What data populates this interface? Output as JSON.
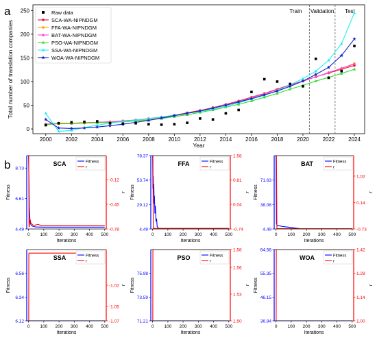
{
  "panel_labels": {
    "a": "a",
    "b": "b"
  },
  "chart_data": [
    {
      "type": "line",
      "ylabel": "Total number of translation companies",
      "xlabel": "Year",
      "xlim": [
        1999,
        2024.8
      ],
      "ylim": [
        -10,
        262
      ],
      "xticks": [
        2000,
        2002,
        2004,
        2006,
        2008,
        2010,
        2012,
        2014,
        2016,
        2018,
        2020,
        2022,
        2024
      ],
      "yticks": [
        0,
        50,
        100,
        150,
        200,
        250
      ],
      "grid": false,
      "legend": "top-left",
      "regions": [
        {
          "label": "Train",
          "from": 1999,
          "to": 2020.5
        },
        {
          "label": "Validation",
          "from": 2020.5,
          "to": 2022.5
        },
        {
          "label": "Test",
          "from": 2022.5,
          "to": 2024.8
        }
      ],
      "raw_data": {
        "name": "Raw data",
        "x": [
          2000,
          2001,
          2002,
          2003,
          2004,
          2005,
          2006,
          2007,
          2008,
          2009,
          2010,
          2011,
          2012,
          2013,
          2014,
          2015,
          2016,
          2017,
          2018,
          2019,
          2020,
          2021,
          2022,
          2023,
          2024
        ],
        "y": [
          8,
          12,
          14,
          15,
          16,
          12,
          11,
          12,
          10,
          9,
          10,
          13,
          22,
          20,
          33,
          40,
          78,
          105,
          100,
          95,
          90,
          148,
          108,
          122,
          175
        ]
      },
      "series": [
        {
          "name": "SCA-WA-NIPNDGM",
          "color": "#e8112d",
          "marker": "circle",
          "values": [
            10,
            12,
            12,
            13,
            14,
            15,
            17,
            19,
            22,
            25,
            29,
            34,
            39,
            45,
            52,
            59,
            67,
            75,
            84,
            93,
            101,
            110,
            118,
            126,
            134
          ]
        },
        {
          "name": "FFA-WA-NIPNDGM",
          "color": "#ffa500",
          "marker": "circle",
          "values": [
            9,
            11,
            11,
            12,
            13,
            14,
            16,
            18,
            21,
            24,
            28,
            33,
            38,
            44,
            51,
            58,
            66,
            74,
            83,
            92,
            101,
            110,
            119,
            128,
            138
          ]
        },
        {
          "name": "BAT-WA-NIPNDGM",
          "color": "#ff3ee0",
          "marker": "triangle",
          "values": [
            10,
            12,
            12,
            13,
            14,
            15,
            17,
            19,
            22,
            25,
            29,
            33,
            38,
            44,
            51,
            58,
            66,
            74,
            83,
            92,
            101,
            110,
            119,
            128,
            137
          ]
        },
        {
          "name": "PSO-WA-NIPNDGM",
          "color": "#33dd33",
          "marker": "triangle",
          "values": [
            9,
            12,
            12,
            13,
            13,
            14,
            15,
            17,
            19,
            22,
            26,
            30,
            35,
            40,
            46,
            52,
            59,
            67,
            75,
            84,
            92,
            101,
            109,
            117,
            126
          ]
        },
        {
          "name": "SSA-WA-NIPNDGM",
          "color": "#22eeee",
          "marker": "triangle",
          "values": [
            33,
            -5,
            -3,
            3,
            8,
            12,
            16,
            19,
            22,
            25,
            29,
            33,
            37,
            42,
            48,
            55,
            63,
            71,
            81,
            93,
            106,
            122,
            145,
            180,
            245
          ]
        },
        {
          "name": "WOA-WA-NIPNDGM",
          "color": "#1122cc",
          "marker": "star",
          "values": [
            20,
            2,
            1,
            2,
            4,
            7,
            10,
            14,
            18,
            23,
            28,
            33,
            38,
            44,
            50,
            57,
            64,
            72,
            80,
            90,
            101,
            115,
            130,
            155,
            190
          ]
        }
      ]
    },
    {
      "type": "line",
      "title": "SCA",
      "xlabel": "Iterations",
      "ylabel": "Fitness",
      "y2label": "r",
      "xlim": [
        -12,
        510
      ],
      "xticks": [
        0,
        100,
        200,
        300,
        400,
        500
      ],
      "ylim": [
        4.49,
        9.6
      ],
      "yticks": [
        4.49,
        6.61,
        8.73
      ],
      "y2lim": [
        -0.78,
        0.2
      ],
      "y2ticks": [
        -0.78,
        -0.45,
        -0.12
      ],
      "legend": "top-right",
      "series": [
        {
          "name": "Fitness",
          "axis": "left",
          "color": "#0000ff",
          "x": [
            0,
            5,
            10,
            15,
            20,
            30,
            50,
            100,
            500
          ],
          "values": [
            9.6,
            6.0,
            4.95,
            4.8,
            4.72,
            4.66,
            4.63,
            4.62,
            4.62
          ]
        },
        {
          "name": "r",
          "axis": "right",
          "color": "#ff0000",
          "x": [
            0,
            1,
            3,
            5,
            8,
            12,
            16,
            20,
            25,
            30,
            40,
            60,
            80,
            100,
            500
          ],
          "values": [
            0.2,
            0.2,
            -0.75,
            -0.75,
            -0.66,
            -0.66,
            -0.71,
            -0.71,
            -0.72,
            -0.73,
            -0.73,
            -0.72,
            -0.73,
            -0.73,
            -0.73
          ]
        }
      ]
    },
    {
      "type": "line",
      "title": "FFA",
      "xlabel": "Iterations",
      "ylabel": "Fitness",
      "y2label": "r",
      "xlim": [
        -12,
        510
      ],
      "xticks": [
        0,
        100,
        200,
        300,
        400,
        500
      ],
      "ylim": [
        4.49,
        78.37
      ],
      "yticks": [
        4.49,
        29.12,
        53.74,
        78.37
      ],
      "y2lim": [
        -0.74,
        1.58
      ],
      "y2ticks": [
        -0.74,
        0.04,
        0.81,
        1.58
      ],
      "legend": "top-right",
      "series": [
        {
          "name": "Fitness",
          "axis": "left",
          "color": "#0000ff",
          "x": [
            0,
            2,
            4,
            6,
            8,
            10,
            12,
            15,
            18,
            22,
            26,
            30,
            40,
            60,
            500
          ],
          "values": [
            78.37,
            45,
            58,
            40,
            50,
            30,
            38,
            20,
            28,
            12,
            15,
            7,
            5,
            4.6,
            4.6
          ]
        },
        {
          "name": "r",
          "axis": "right",
          "color": "#ff0000",
          "x": [
            0,
            2,
            4,
            6,
            500
          ],
          "values": [
            1.58,
            1.58,
            -0.72,
            -0.72,
            -0.72
          ]
        }
      ]
    },
    {
      "type": "line",
      "title": "BAT",
      "xlabel": "Iterations",
      "ylabel": "Fitness",
      "y2label": "r",
      "xlim": [
        -12,
        510
      ],
      "xticks": [
        0,
        100,
        200,
        300,
        400,
        500
      ],
      "ylim": [
        4.49,
        105
      ],
      "yticks": [
        4.49,
        38.06,
        71.63
      ],
      "y2lim": [
        -0.73,
        1.7
      ],
      "y2ticks": [
        -0.73,
        0.14,
        1.02
      ],
      "legend": "top-right",
      "series": [
        {
          "name": "Fitness",
          "axis": "left",
          "color": "#0000ff",
          "x": [
            0,
            3,
            6,
            10,
            20,
            40,
            80,
            120,
            160,
            200,
            500
          ],
          "values": [
            105,
            12,
            10,
            9.5,
            9,
            8,
            7,
            6,
            5,
            4.5,
            4.49
          ]
        },
        {
          "name": "r",
          "axis": "right",
          "color": "#ff0000",
          "x": [
            0,
            3,
            6,
            500
          ],
          "values": [
            1.7,
            1.7,
            -0.72,
            -0.72
          ]
        }
      ]
    },
    {
      "type": "line",
      "title": "SSA",
      "xlabel": "Iterations",
      "ylabel": "Fitness",
      "y2label": "r",
      "xlim": [
        -12,
        510
      ],
      "xticks": [
        0,
        100,
        200,
        300,
        400,
        500
      ],
      "ylim": [
        6.12,
        6.78
      ],
      "yticks": [
        6.12,
        6.34,
        6.56
      ],
      "y2lim": [
        -1.07,
        -0.97
      ],
      "y2ticks": [
        -1.07,
        -1.05,
        -1.02
      ],
      "legend": "top-right",
      "series": [
        {
          "name": "Fitness",
          "axis": "left",
          "color": "#0000ff",
          "x": [
            0,
            500
          ],
          "values": [
            6.12,
            6.12
          ]
        },
        {
          "name": "r",
          "axis": "right",
          "color": "#ff0000",
          "x": [
            0,
            1,
            2,
            500
          ],
          "values": [
            -1.07,
            -1.07,
            -0.975,
            -0.975
          ]
        }
      ]
    },
    {
      "type": "line",
      "title": "PSO",
      "xlabel": "Iterations",
      "ylabel": "Fitness",
      "y2label": "r",
      "xlim": [
        -12,
        510
      ],
      "xticks": [
        0,
        100,
        200,
        300,
        400,
        500
      ],
      "ylim": [
        71.21,
        78.37
      ],
      "yticks": [
        71.21,
        73.59,
        75.98
      ],
      "y2lim": [
        1.5,
        1.58
      ],
      "y2ticks": [
        1.5,
        1.53,
        1.56,
        1.58
      ],
      "legend": "top-right",
      "series": [
        {
          "name": "Fitness",
          "axis": "left",
          "color": "#0000ff",
          "x": [
            0,
            500
          ],
          "values": [
            71.21,
            71.21
          ]
        },
        {
          "name": "r",
          "axis": "right",
          "color": "#ff0000",
          "x": [
            0,
            1,
            2,
            500
          ],
          "values": [
            1.5,
            1.5,
            1.58,
            1.58
          ]
        }
      ]
    },
    {
      "type": "line",
      "title": "WOA",
      "xlabel": "Iterations",
      "ylabel": "Fitness",
      "y2label": "r",
      "xlim": [
        -12,
        510
      ],
      "xticks": [
        0,
        100,
        200,
        300,
        400,
        500
      ],
      "ylim": [
        36.94,
        64.56
      ],
      "yticks": [
        36.94,
        46.15,
        55.35,
        64.56
      ],
      "y2lim": [
        1.0,
        1.42
      ],
      "y2ticks": [
        1.0,
        1.14,
        1.28,
        1.42
      ],
      "legend": "top-right",
      "series": [
        {
          "name": "Fitness",
          "axis": "left",
          "color": "#0000ff",
          "x": [
            0,
            500
          ],
          "values": [
            36.94,
            36.94
          ]
        },
        {
          "name": "r",
          "axis": "right",
          "color": "#ff0000",
          "x": [
            0,
            1,
            2,
            500
          ],
          "values": [
            1.0,
            1.0,
            1.42,
            1.42
          ]
        }
      ]
    }
  ]
}
